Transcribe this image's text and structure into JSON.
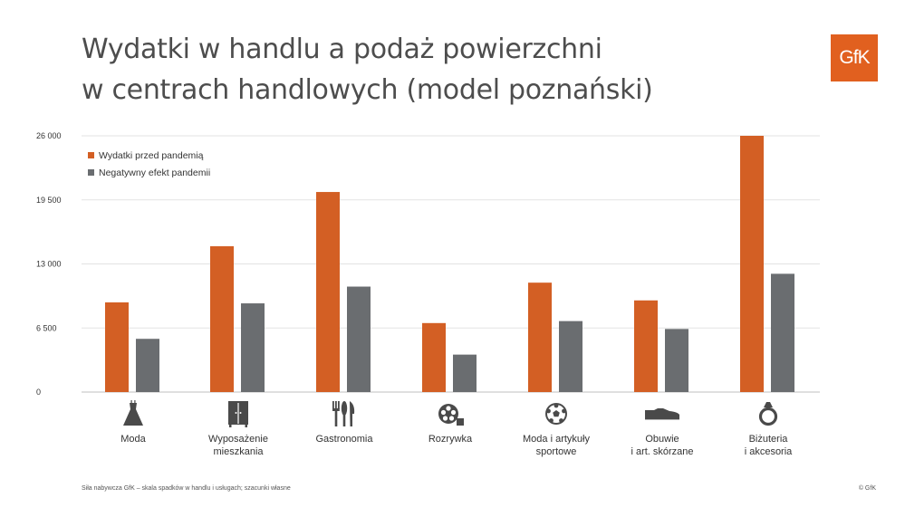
{
  "header": {
    "title_line1": "Wydatki w handlu a podaż powierzchni",
    "title_line2": "w centrach handlowych (model poznański)",
    "logo_text": "GfK"
  },
  "footer": {
    "source": "Siła nabywcza GfK – skala spadków w handlu i usługach; szacunki własne",
    "copyright": "© GfK"
  },
  "colors": {
    "orange": "#d35f24",
    "gray": "#6a6d70",
    "grid": "#e3e3e3",
    "axis": "#bfbfbf",
    "text": "#333333",
    "icon": "#4a4a4a"
  },
  "chart_data": {
    "type": "bar",
    "title": "",
    "xlabel": "",
    "ylabel": "",
    "ylim": [
      0,
      26000
    ],
    "y_ticks": [
      0,
      6500,
      13000,
      19500,
      26000
    ],
    "y_tick_labels": [
      "0",
      "6 500",
      "13 000",
      "19 500",
      "26 000"
    ],
    "grid": true,
    "legend_position": "top-left",
    "categories": [
      [
        "Moda"
      ],
      [
        "Wyposażenie",
        "mieszkania"
      ],
      [
        "Gastronomia"
      ],
      [
        "Rozrywka"
      ],
      [
        "Moda i artykuły",
        "sportowe"
      ],
      [
        "Obuwie",
        "i art. skórzane"
      ],
      [
        "Biżuteria",
        "i akcesoria"
      ]
    ],
    "category_icons": [
      "dress-icon",
      "wardrobe-icon",
      "cutlery-icon",
      "film-reel-icon",
      "soccer-ball-icon",
      "shoe-icon",
      "ring-icon"
    ],
    "series": [
      {
        "name": "Wydatki przed pandemią",
        "color": "#d35f24",
        "values": [
          9100,
          14800,
          20300,
          7000,
          11100,
          9300,
          26000
        ]
      },
      {
        "name": "Negatywny efekt pandemii",
        "color": "#6a6d70",
        "values": [
          5400,
          9000,
          10700,
          3800,
          7200,
          6400,
          12000
        ]
      }
    ]
  }
}
